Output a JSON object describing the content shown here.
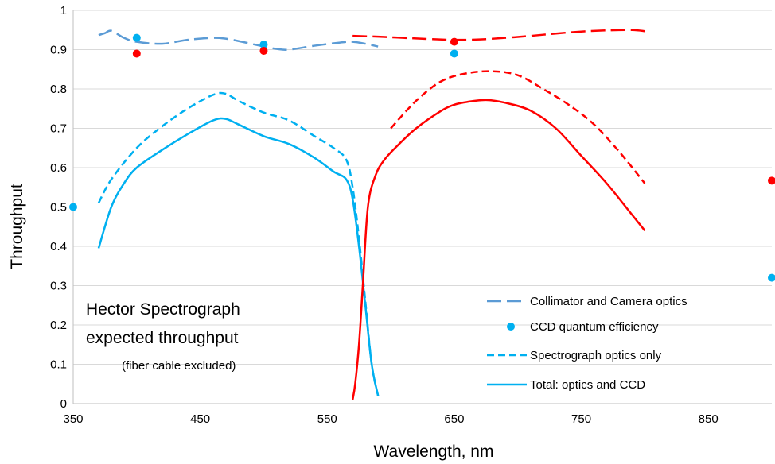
{
  "chart_data": {
    "type": "line",
    "xlabel": "Wavelength, nm",
    "ylabel": "Throughput",
    "xlim": [
      350,
      900
    ],
    "ylim": [
      0,
      1
    ],
    "xticks": [
      "350",
      "450",
      "550",
      "650",
      "750",
      "850"
    ],
    "xtick_values": [
      350,
      450,
      550,
      650,
      750,
      850
    ],
    "yticks": [
      "0",
      "0.1",
      "0.2",
      "0.3",
      "0.4",
      "0.5",
      "0.6",
      "0.7",
      "0.8",
      "0.9",
      "1"
    ],
    "ytick_values": [
      0,
      0.1,
      0.2,
      0.3,
      0.4,
      0.5,
      0.6,
      0.7,
      0.8,
      0.9,
      1
    ],
    "grid": "horizontal",
    "annotation": {
      "line1": "Hector Spectrograph",
      "line2": "expected throughput",
      "line3": "(fiber cable excluded)"
    },
    "legend": [
      {
        "label": "Collimator and Camera optics",
        "style": "long-dash"
      },
      {
        "label": "CCD quantum efficiency",
        "style": "marker"
      },
      {
        "label": "Spectrograph optics only",
        "style": "short-dash"
      },
      {
        "label": "Total: optics and CCD",
        "style": "solid"
      }
    ],
    "colors": {
      "blue_arm": "#00b0f0",
      "collimator_blue": "#5b9bd5",
      "red_arm": "#ff0000"
    },
    "series": [
      {
        "group": "Collimator and Camera optics",
        "arm": "blue",
        "style": "long-dash",
        "color": "#5b9bd5",
        "x": [
          370,
          375,
          380,
          390,
          400,
          420,
          440,
          460,
          470,
          480,
          500,
          510,
          520,
          540,
          560,
          570,
          580,
          590
        ],
        "y": [
          0.937,
          0.942,
          0.948,
          0.93,
          0.92,
          0.915,
          0.925,
          0.93,
          0.928,
          0.922,
          0.908,
          0.902,
          0.9,
          0.91,
          0.918,
          0.92,
          0.915,
          0.908
        ]
      },
      {
        "group": "Collimator and Camera optics",
        "arm": "red",
        "style": "long-dash",
        "color": "#ff0000",
        "x": [
          570,
          590,
          610,
          630,
          650,
          670,
          690,
          710,
          730,
          750,
          770,
          790,
          800
        ],
        "y": [
          0.935,
          0.933,
          0.93,
          0.927,
          0.925,
          0.926,
          0.93,
          0.935,
          0.941,
          0.946,
          0.949,
          0.95,
          0.947
        ]
      },
      {
        "group": "CCD quantum efficiency",
        "arm": "blue",
        "style": "marker",
        "color": "#00b0f0",
        "x": [
          350,
          400,
          500,
          650,
          900
        ],
        "y": [
          0.5,
          0.93,
          0.913,
          0.89,
          0.32
        ]
      },
      {
        "group": "CCD quantum efficiency",
        "arm": "red",
        "style": "marker",
        "color": "#ff0000",
        "x": [
          400,
          500,
          650,
          900
        ],
        "y": [
          0.89,
          0.897,
          0.92,
          0.567
        ]
      },
      {
        "group": "Spectrograph optics only",
        "arm": "blue",
        "style": "short-dash",
        "color": "#00b0f0",
        "x": [
          370,
          380,
          400,
          420,
          440,
          460,
          470,
          480,
          500,
          520,
          540,
          555,
          565,
          570,
          575,
          580,
          585,
          590
        ],
        "y": [
          0.51,
          0.57,
          0.65,
          0.705,
          0.75,
          0.785,
          0.788,
          0.77,
          0.74,
          0.72,
          0.68,
          0.65,
          0.62,
          0.55,
          0.42,
          0.26,
          0.1,
          0.02
        ]
      },
      {
        "group": "Spectrograph optics only",
        "arm": "red",
        "style": "short-dash",
        "color": "#ff0000",
        "x": [
          600,
          620,
          640,
          660,
          680,
          700,
          720,
          740,
          760,
          780,
          800
        ],
        "y": [
          0.7,
          0.77,
          0.82,
          0.84,
          0.845,
          0.835,
          0.8,
          0.76,
          0.71,
          0.64,
          0.56
        ]
      },
      {
        "group": "Total: optics and CCD",
        "arm": "blue",
        "style": "solid",
        "color": "#00b0f0",
        "x": [
          370,
          380,
          390,
          400,
          420,
          440,
          460,
          470,
          480,
          500,
          520,
          540,
          555,
          565,
          570,
          575,
          580,
          585,
          590
        ],
        "y": [
          0.395,
          0.5,
          0.56,
          0.6,
          0.645,
          0.685,
          0.72,
          0.724,
          0.71,
          0.68,
          0.66,
          0.625,
          0.59,
          0.57,
          0.52,
          0.4,
          0.25,
          0.1,
          0.02
        ]
      },
      {
        "group": "Total: optics and CCD",
        "arm": "red",
        "style": "solid",
        "color": "#ff0000",
        "x": [
          570,
          572,
          575,
          578,
          582,
          588,
          595,
          605,
          620,
          640,
          650,
          660,
          675,
          690,
          710,
          730,
          750,
          770,
          790,
          800
        ],
        "y": [
          0.01,
          0.05,
          0.15,
          0.3,
          0.5,
          0.58,
          0.62,
          0.655,
          0.7,
          0.745,
          0.76,
          0.767,
          0.772,
          0.765,
          0.745,
          0.7,
          0.63,
          0.56,
          0.48,
          0.44
        ]
      }
    ]
  }
}
